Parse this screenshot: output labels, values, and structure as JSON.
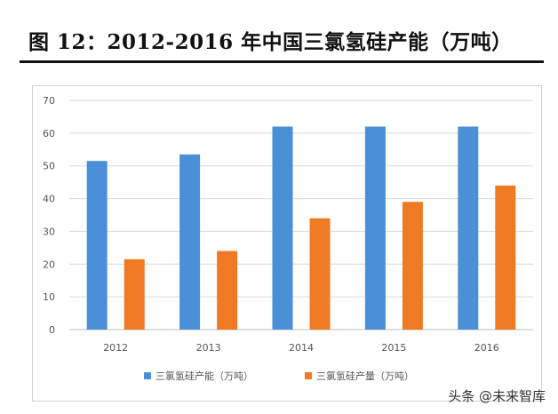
{
  "title": "图 12：2012-2016 年中国三氯氢硅产能（万吨）",
  "watermark": "头条 @未来智库",
  "chart_data": {
    "type": "bar",
    "categories": [
      "2012",
      "2013",
      "2014",
      "2015",
      "2016"
    ],
    "series": [
      {
        "name": "三氯氢硅产能（万吨）",
        "values": [
          51.5,
          53.5,
          62,
          62,
          62
        ],
        "color": "#4a8fd8"
      },
      {
        "name": "三氯氢硅产量（万吨）",
        "values": [
          21.5,
          24,
          34,
          39,
          44
        ],
        "color": "#f07a24"
      }
    ],
    "ylim": [
      0,
      70
    ],
    "yticks": [
      "0",
      "10",
      "20",
      "30",
      "40",
      "50",
      "60",
      "70"
    ],
    "grid": true,
    "legend": "bottom",
    "xlabel": "",
    "ylabel": ""
  }
}
